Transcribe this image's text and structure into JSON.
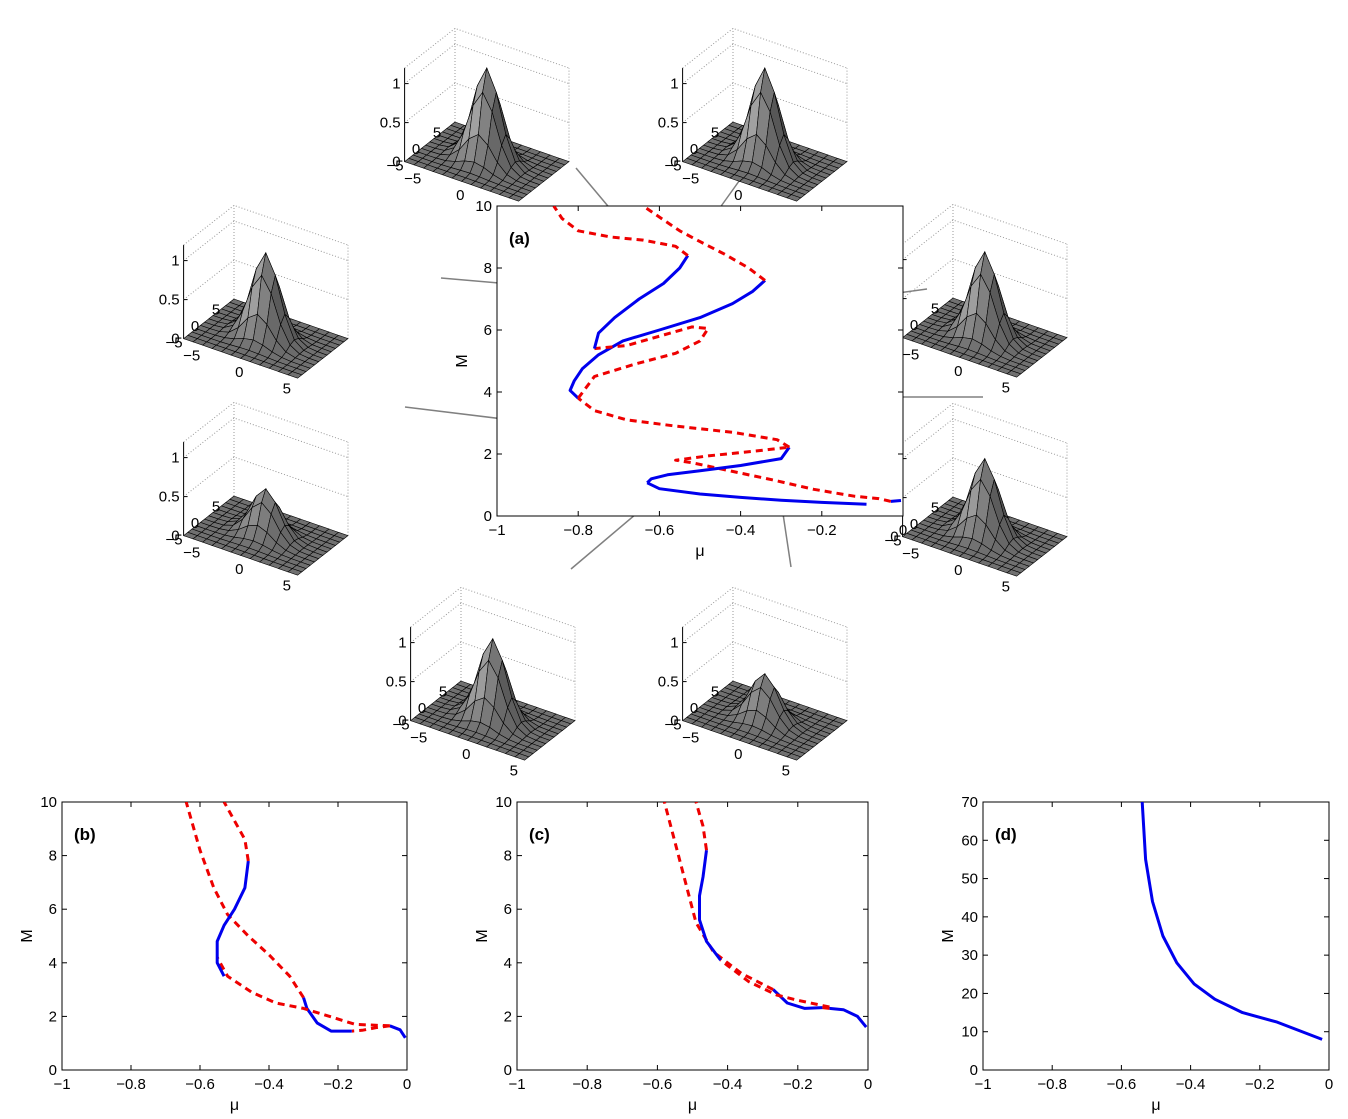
{
  "chart_data": [
    {
      "panel": "(a)",
      "type": "line",
      "xlabel": "μ",
      "ylabel": "M",
      "xlim": [
        -1,
        0
      ],
      "ylim": [
        0,
        10
      ],
      "xticks": [
        "−1",
        "−0.8",
        "−0.6",
        "−0.4",
        "−0.2",
        "0"
      ],
      "yticks": [
        "0",
        "2",
        "4",
        "6",
        "8",
        "10"
      ],
      "grid": false,
      "series": [
        {
          "style": "stable",
          "color": "#0000ee",
          "points": [
            [
              -0.005,
              0.5
            ],
            [
              -0.03,
              0.47
            ]
          ]
        },
        {
          "style": "unstable",
          "color": "#ee0000",
          "points": [
            [
              -0.03,
              0.47
            ],
            [
              -0.06,
              0.56
            ],
            [
              -0.12,
              0.64
            ],
            [
              -0.22,
              0.86
            ],
            [
              -0.32,
              1.16
            ],
            [
              -0.42,
              1.44
            ],
            [
              -0.52,
              1.72
            ],
            [
              -0.56,
              1.8
            ],
            [
              -0.48,
              1.94
            ],
            [
              -0.36,
              2.1
            ],
            [
              -0.28,
              2.22
            ]
          ]
        },
        {
          "style": "stable",
          "color": "#0000ee",
          "points": [
            [
              -0.28,
              2.22
            ],
            [
              -0.3,
              1.85
            ],
            [
              -0.4,
              1.63
            ],
            [
              -0.5,
              1.46
            ],
            [
              -0.58,
              1.33
            ],
            [
              -0.62,
              1.2
            ],
            [
              -0.63,
              1.07
            ]
          ]
        },
        {
          "style": "stable",
          "color": "#0000ee",
          "points": [
            [
              -0.63,
              1.07
            ],
            [
              -0.6,
              0.88
            ],
            [
              -0.5,
              0.71
            ],
            [
              -0.4,
              0.6
            ],
            [
              -0.3,
              0.51
            ],
            [
              -0.2,
              0.44
            ],
            [
              -0.09,
              0.38
            ]
          ]
        },
        {
          "style": "unstable",
          "color": "#ee0000",
          "points": [
            [
              -0.28,
              2.22
            ],
            [
              -0.31,
              2.46
            ],
            [
              -0.42,
              2.7
            ],
            [
              -0.56,
              2.9
            ],
            [
              -0.68,
              3.1
            ],
            [
              -0.76,
              3.4
            ],
            [
              -0.8,
              3.8
            ]
          ]
        },
        {
          "style": "stable",
          "color": "#0000ee",
          "points": [
            [
              -0.8,
              3.8
            ],
            [
              -0.82,
              4.05
            ],
            [
              -0.81,
              4.35
            ],
            [
              -0.79,
              4.75
            ],
            [
              -0.75,
              5.2
            ],
            [
              -0.69,
              5.65
            ],
            [
              -0.6,
              6.0
            ],
            [
              -0.5,
              6.4
            ],
            [
              -0.42,
              6.85
            ],
            [
              -0.37,
              7.25
            ],
            [
              -0.34,
              7.6
            ]
          ]
        },
        {
          "style": "unstable",
          "color": "#ee0000",
          "points": [
            [
              -0.34,
              7.6
            ],
            [
              -0.38,
              8.0
            ],
            [
              -0.44,
              8.45
            ],
            [
              -0.5,
              8.85
            ],
            [
              -0.55,
              9.2
            ],
            [
              -0.59,
              9.55
            ],
            [
              -0.64,
              10.0
            ]
          ]
        },
        {
          "style": "unstable",
          "color": "#ee0000",
          "points": [
            [
              -0.8,
              3.8
            ],
            [
              -0.76,
              4.5
            ],
            [
              -0.66,
              4.9
            ],
            [
              -0.56,
              5.25
            ],
            [
              -0.5,
              5.65
            ],
            [
              -0.48,
              6.05
            ],
            [
              -0.52,
              6.1
            ],
            [
              -0.6,
              5.8
            ],
            [
              -0.68,
              5.5
            ],
            [
              -0.76,
              5.4
            ]
          ]
        },
        {
          "style": "stable",
          "color": "#0000ee",
          "points": [
            [
              -0.76,
              5.4
            ],
            [
              -0.75,
              5.9
            ],
            [
              -0.71,
              6.4
            ],
            [
              -0.65,
              7.0
            ],
            [
              -0.59,
              7.5
            ],
            [
              -0.55,
              8.0
            ],
            [
              -0.53,
              8.4
            ]
          ]
        },
        {
          "style": "unstable",
          "color": "#ee0000",
          "points": [
            [
              -0.53,
              8.4
            ],
            [
              -0.56,
              8.7
            ],
            [
              -0.64,
              8.9
            ],
            [
              -0.72,
              9.0
            ],
            [
              -0.8,
              9.2
            ],
            [
              -0.84,
              9.6
            ],
            [
              -0.86,
              10.0
            ]
          ]
        }
      ]
    },
    {
      "panel": "(b)",
      "type": "line",
      "xlabel": "μ",
      "ylabel": "M",
      "xlim": [
        -1,
        0
      ],
      "ylim": [
        0,
        10
      ],
      "xticks": [
        "−1",
        "−0.8",
        "−0.6",
        "−0.4",
        "−0.2",
        "0"
      ],
      "yticks": [
        "0",
        "2",
        "4",
        "6",
        "8",
        "10"
      ],
      "grid": false,
      "series": [
        {
          "style": "stable",
          "color": "#0000ee",
          "points": [
            [
              -0.005,
              1.2
            ],
            [
              -0.02,
              1.5
            ],
            [
              -0.05,
              1.65
            ]
          ]
        },
        {
          "style": "unstable",
          "color": "#ee0000",
          "points": [
            [
              -0.05,
              1.65
            ],
            [
              -0.09,
              1.58
            ],
            [
              -0.13,
              1.48
            ],
            [
              -0.16,
              1.45
            ]
          ]
        },
        {
          "style": "stable",
          "color": "#0000ee",
          "points": [
            [
              -0.16,
              1.45
            ],
            [
              -0.22,
              1.45
            ],
            [
              -0.26,
              1.75
            ],
            [
              -0.29,
              2.3
            ],
            [
              -0.3,
              2.7
            ]
          ]
        },
        {
          "style": "unstable",
          "color": "#ee0000",
          "points": [
            [
              -0.05,
              1.65
            ],
            [
              -0.15,
              1.7
            ],
            [
              -0.25,
              2.1
            ],
            [
              -0.3,
              2.3
            ],
            [
              -0.38,
              2.5
            ],
            [
              -0.45,
              2.9
            ],
            [
              -0.52,
              3.5
            ],
            [
              -0.55,
              4.2
            ]
          ]
        },
        {
          "style": "unstable",
          "color": "#ee0000",
          "points": [
            [
              -0.3,
              2.7
            ],
            [
              -0.34,
              3.5
            ],
            [
              -0.4,
              4.3
            ],
            [
              -0.46,
              5.0
            ],
            [
              -0.52,
              5.8
            ],
            [
              -0.56,
              6.8
            ],
            [
              -0.6,
              8.2
            ],
            [
              -0.64,
              10.0
            ]
          ]
        },
        {
          "style": "stable",
          "color": "#0000ee",
          "points": [
            [
              -0.53,
              3.5
            ],
            [
              -0.55,
              4.0
            ],
            [
              -0.55,
              4.8
            ],
            [
              -0.53,
              5.4
            ],
            [
              -0.5,
              6.0
            ],
            [
              -0.47,
              6.8
            ],
            [
              -0.46,
              7.8
            ]
          ]
        },
        {
          "style": "unstable",
          "color": "#ee0000",
          "points": [
            [
              -0.46,
              7.8
            ],
            [
              -0.47,
              8.6
            ],
            [
              -0.5,
              9.3
            ],
            [
              -0.53,
              10.0
            ]
          ]
        }
      ]
    },
    {
      "panel": "(c)",
      "type": "line",
      "xlabel": "μ",
      "ylabel": "M",
      "xlim": [
        -1,
        0
      ],
      "ylim": [
        0,
        10
      ],
      "xticks": [
        "−1",
        "−0.8",
        "−0.6",
        "−0.4",
        "−0.2",
        "0"
      ],
      "yticks": [
        "0",
        "2",
        "4",
        "6",
        "8",
        "10"
      ],
      "grid": false,
      "series": [
        {
          "style": "stable",
          "color": "#0000ee",
          "points": [
            [
              -0.005,
              1.6
            ],
            [
              -0.03,
              2.0
            ],
            [
              -0.07,
              2.25
            ],
            [
              -0.11,
              2.3
            ]
          ]
        },
        {
          "style": "unstable",
          "color": "#ee0000",
          "points": [
            [
              -0.11,
              2.3
            ],
            [
              -0.13,
              2.33
            ]
          ]
        },
        {
          "style": "stable",
          "color": "#0000ee",
          "points": [
            [
              -0.13,
              2.33
            ],
            [
              -0.18,
              2.3
            ],
            [
              -0.23,
              2.5
            ],
            [
              -0.27,
              3.0
            ]
          ]
        },
        {
          "style": "unstable",
          "color": "#ee0000",
          "points": [
            [
              -0.11,
              2.35
            ],
            [
              -0.2,
              2.6
            ],
            [
              -0.26,
              2.8
            ],
            [
              -0.34,
              3.3
            ],
            [
              -0.4,
              3.9
            ],
            [
              -0.42,
              4.1
            ]
          ]
        },
        {
          "style": "unstable",
          "color": "#ee0000",
          "points": [
            [
              -0.27,
              3.0
            ],
            [
              -0.36,
              3.6
            ],
            [
              -0.44,
              4.4
            ],
            [
              -0.49,
              5.5
            ],
            [
              -0.52,
              7.0
            ],
            [
              -0.55,
              8.5
            ],
            [
              -0.58,
              10.0
            ]
          ]
        },
        {
          "style": "stable",
          "color": "#0000ee",
          "points": [
            [
              -0.42,
              4.1
            ],
            [
              -0.46,
              4.8
            ],
            [
              -0.48,
              5.6
            ],
            [
              -0.48,
              6.5
            ],
            [
              -0.47,
              7.2
            ],
            [
              -0.46,
              8.2
            ]
          ]
        },
        {
          "style": "unstable",
          "color": "#ee0000",
          "points": [
            [
              -0.46,
              8.2
            ],
            [
              -0.47,
              9.1
            ],
            [
              -0.49,
              10.0
            ]
          ]
        }
      ]
    },
    {
      "panel": "(d)",
      "type": "line",
      "xlabel": "μ",
      "ylabel": "M",
      "xlim": [
        -1,
        0
      ],
      "ylim": [
        0,
        70
      ],
      "xticks": [
        "−1",
        "−0.8",
        "−0.6",
        "−0.4",
        "−0.2",
        "0"
      ],
      "yticks": [
        "0",
        "10",
        "20",
        "30",
        "40",
        "50",
        "60",
        "70"
      ],
      "grid": false,
      "series": [
        {
          "style": "stable",
          "color": "#0000ee",
          "points": [
            [
              -0.54,
              70
            ],
            [
              -0.53,
              55
            ],
            [
              -0.51,
              44
            ],
            [
              -0.48,
              35
            ],
            [
              -0.44,
              28
            ],
            [
              -0.39,
              22.5
            ],
            [
              -0.33,
              18.5
            ],
            [
              -0.25,
              15
            ],
            [
              -0.15,
              12.5
            ],
            [
              -0.02,
              8
            ]
          ]
        }
      ]
    }
  ],
  "insets": {
    "z_ticks": [
      "0",
      "0.5",
      "1"
    ],
    "xy_ticks": [
      "5",
      "0",
      "−5",
      "−5",
      "0",
      "5"
    ],
    "peak_heights": [
      1.2,
      1.2,
      1.1,
      1.1,
      0.6,
      1.0,
      1.05,
      0.6
    ]
  }
}
